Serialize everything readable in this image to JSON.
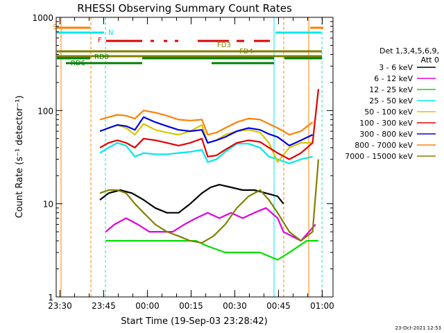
{
  "chart_data": {
    "type": "line",
    "title": "RHESSI Observing Summary Count Rates",
    "xlabel": "Start Time (19-Sep-03 23:28:42)",
    "ylabel": "Count Rate (s⁻¹ detector⁻¹)",
    "yscale": "log",
    "ylim": [
      1,
      1000
    ],
    "xlim_minutes": [
      0,
      95
    ],
    "x_ticks": [
      {
        "label": "23:30",
        "minute": 1.3
      },
      {
        "label": "23:45",
        "minute": 16.3
      },
      {
        "label": "00:00",
        "minute": 31.3
      },
      {
        "label": "00:15",
        "minute": 46.3
      },
      {
        "label": "00:30",
        "minute": 61.3
      },
      {
        "label": "00:45",
        "minute": 76.3
      },
      {
        "label": "01:00",
        "minute": 91.3
      }
    ],
    "y_ticks": [
      {
        "label": "1",
        "value": 1
      },
      {
        "label": "10",
        "value": 10
      },
      {
        "label": "100",
        "value": 100
      },
      {
        "label": "1000",
        "value": 1000
      }
    ],
    "legend_header": [
      "Det 1,3,4,5,6,9,",
      "Att 0"
    ],
    "series": [
      {
        "name": "3 - 6 keV",
        "color": "#000000",
        "points": [
          [
            15,
            11
          ],
          [
            18,
            13
          ],
          [
            22,
            14
          ],
          [
            26,
            13
          ],
          [
            30,
            11
          ],
          [
            34,
            9
          ],
          [
            38,
            8
          ],
          [
            42,
            8
          ],
          [
            46,
            10
          ],
          [
            50,
            13
          ],
          [
            53,
            15
          ],
          [
            56,
            16
          ],
          [
            60,
            15
          ],
          [
            64,
            14
          ],
          [
            68,
            14
          ],
          [
            72,
            13
          ],
          [
            76,
            12
          ],
          [
            78,
            10
          ]
        ]
      },
      {
        "name": "6 - 12 keV",
        "color": "#e000e0",
        "points": [
          [
            17,
            5
          ],
          [
            20,
            6
          ],
          [
            24,
            7
          ],
          [
            28,
            6
          ],
          [
            32,
            5
          ],
          [
            36,
            5
          ],
          [
            40,
            5
          ],
          [
            44,
            6
          ],
          [
            48,
            7
          ],
          [
            52,
            8
          ],
          [
            56,
            7
          ],
          [
            60,
            8
          ],
          [
            64,
            7
          ],
          [
            68,
            8
          ],
          [
            72,
            9
          ],
          [
            76,
            7
          ],
          [
            78,
            5
          ],
          [
            84,
            4
          ],
          [
            89,
            6
          ]
        ]
      },
      {
        "name": "12 - 25 keV",
        "color": "#00e000",
        "points": [
          [
            17,
            4
          ],
          [
            22,
            4
          ],
          [
            26,
            4
          ],
          [
            30,
            4
          ],
          [
            36,
            4
          ],
          [
            42,
            4
          ],
          [
            48,
            4
          ],
          [
            52,
            3.5
          ],
          [
            58,
            3
          ],
          [
            64,
            3
          ],
          [
            70,
            3
          ],
          [
            76,
            2.5
          ],
          [
            80,
            3
          ],
          [
            86,
            4
          ],
          [
            90,
            4
          ]
        ]
      },
      {
        "name": "25 - 50 keV",
        "color": "#00e8e8",
        "points": [
          [
            15,
            35
          ],
          [
            18,
            40
          ],
          [
            21,
            45
          ],
          [
            24,
            42
          ],
          [
            27,
            32
          ],
          [
            30,
            35
          ],
          [
            34,
            34
          ],
          [
            38,
            34
          ],
          [
            42,
            35
          ],
          [
            46,
            36
          ],
          [
            50,
            38
          ],
          [
            52,
            28
          ],
          [
            55,
            30
          ],
          [
            58,
            36
          ],
          [
            62,
            44
          ],
          [
            66,
            44
          ],
          [
            70,
            40
          ],
          [
            73,
            32
          ],
          [
            76,
            30
          ],
          [
            80,
            27
          ],
          [
            84,
            30
          ],
          [
            88,
            32
          ]
        ]
      },
      {
        "name": "50 - 100 keV",
        "color": "#d4c800",
        "points": [
          [
            15,
            60
          ],
          [
            18,
            65
          ],
          [
            21,
            70
          ],
          [
            24,
            65
          ],
          [
            27,
            55
          ],
          [
            30,
            72
          ],
          [
            34,
            62
          ],
          [
            38,
            58
          ],
          [
            42,
            55
          ],
          [
            46,
            60
          ],
          [
            50,
            70
          ],
          [
            52,
            45
          ],
          [
            55,
            48
          ],
          [
            58,
            55
          ],
          [
            62,
            60
          ],
          [
            66,
            62
          ],
          [
            70,
            58
          ],
          [
            73,
            45
          ],
          [
            76,
            28
          ],
          [
            80,
            40
          ],
          [
            84,
            45
          ],
          [
            88,
            45
          ]
        ]
      },
      {
        "name": "100 - 300 keV",
        "color": "#e00000",
        "points": [
          [
            15,
            40
          ],
          [
            18,
            45
          ],
          [
            21,
            48
          ],
          [
            24,
            45
          ],
          [
            27,
            40
          ],
          [
            30,
            50
          ],
          [
            34,
            48
          ],
          [
            38,
            45
          ],
          [
            42,
            42
          ],
          [
            46,
            45
          ],
          [
            50,
            50
          ],
          [
            52,
            32
          ],
          [
            55,
            33
          ],
          [
            58,
            38
          ],
          [
            62,
            45
          ],
          [
            66,
            48
          ],
          [
            70,
            46
          ],
          [
            73,
            40
          ],
          [
            76,
            35
          ],
          [
            80,
            30
          ],
          [
            84,
            35
          ],
          [
            88,
            45
          ],
          [
            90,
            170
          ]
        ]
      },
      {
        "name": "300 - 800 keV",
        "color": "#0000e0",
        "points": [
          [
            15,
            60
          ],
          [
            18,
            65
          ],
          [
            21,
            70
          ],
          [
            24,
            68
          ],
          [
            27,
            62
          ],
          [
            30,
            85
          ],
          [
            34,
            75
          ],
          [
            38,
            68
          ],
          [
            42,
            62
          ],
          [
            46,
            60
          ],
          [
            50,
            62
          ],
          [
            52,
            45
          ],
          [
            55,
            48
          ],
          [
            58,
            52
          ],
          [
            62,
            60
          ],
          [
            66,
            65
          ],
          [
            70,
            62
          ],
          [
            73,
            56
          ],
          [
            76,
            52
          ],
          [
            80,
            42
          ],
          [
            84,
            48
          ],
          [
            88,
            55
          ]
        ]
      },
      {
        "name": "800 - 7000 keV",
        "color": "#ff8000",
        "points": [
          [
            15,
            80
          ],
          [
            18,
            85
          ],
          [
            21,
            90
          ],
          [
            24,
            88
          ],
          [
            27,
            82
          ],
          [
            30,
            100
          ],
          [
            34,
            95
          ],
          [
            38,
            88
          ],
          [
            42,
            80
          ],
          [
            46,
            78
          ],
          [
            50,
            80
          ],
          [
            52,
            55
          ],
          [
            55,
            58
          ],
          [
            58,
            65
          ],
          [
            62,
            75
          ],
          [
            66,
            82
          ],
          [
            70,
            80
          ],
          [
            73,
            72
          ],
          [
            76,
            65
          ],
          [
            80,
            55
          ],
          [
            84,
            60
          ],
          [
            88,
            75
          ]
        ]
      },
      {
        "name": "7000 - 15000 keV",
        "color": "#808000",
        "points": [
          [
            15,
            13
          ],
          [
            18,
            14
          ],
          [
            21,
            14
          ],
          [
            24,
            13
          ],
          [
            27,
            10
          ],
          [
            30,
            8
          ],
          [
            34,
            6
          ],
          [
            38,
            5
          ],
          [
            42,
            4.5
          ],
          [
            46,
            4
          ],
          [
            50,
            3.8
          ],
          [
            54,
            4.5
          ],
          [
            58,
            6
          ],
          [
            62,
            9
          ],
          [
            66,
            12
          ],
          [
            70,
            14
          ],
          [
            73,
            11
          ],
          [
            76,
            8
          ],
          [
            80,
            5
          ],
          [
            84,
            4
          ],
          [
            88,
            5
          ],
          [
            90,
            30
          ]
        ]
      }
    ],
    "annotations": [
      {
        "label": "F",
        "color": "#e00000"
      },
      {
        "label": "N",
        "color": "#00e8e8"
      },
      {
        "label": "S",
        "color": "#ff8000"
      },
      {
        "label": "FD3",
        "color": "#808000"
      },
      {
        "label": "FD4",
        "color": "#808000"
      },
      {
        "label": "RD0",
        "color": "#008000"
      },
      {
        "label": "RD6",
        "color": "#008000"
      }
    ],
    "timestamp": "23-Oct-2021 12:53"
  }
}
